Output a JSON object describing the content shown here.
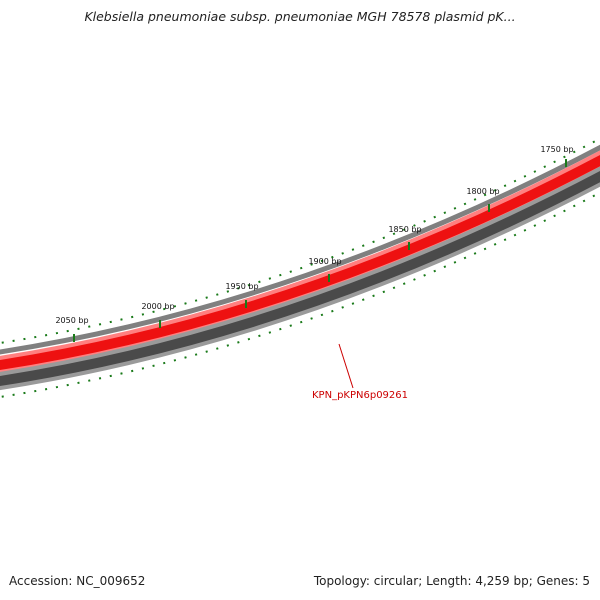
{
  "header": {
    "title": "Klebsiella pneumoniae subsp. pneumoniae MGH 78578 plasmid pK..."
  },
  "footer": {
    "accession": "Accession: NC_009652",
    "summary": "Topology: circular; Length: 4,259 bp; Genes: 5"
  },
  "map": {
    "tick_labels": [
      "2050 bp",
      "2000 bp",
      "1950 bp",
      "1900 bp",
      "1850 bp",
      "1800 bp",
      "1750 bp"
    ],
    "genes": [
      {
        "label": "KPN_pKPN6p09261",
        "strand": "forward"
      }
    ],
    "colors": {
      "forward_gene": "#ee1111",
      "forward_gene_light": "#ff8080",
      "backbone": "#808080",
      "reverse_track": "#4a4a4a",
      "reverse_track_light": "#9a9a9a",
      "tick": "#1a7a1a",
      "gene_label": "#cc0000"
    }
  }
}
